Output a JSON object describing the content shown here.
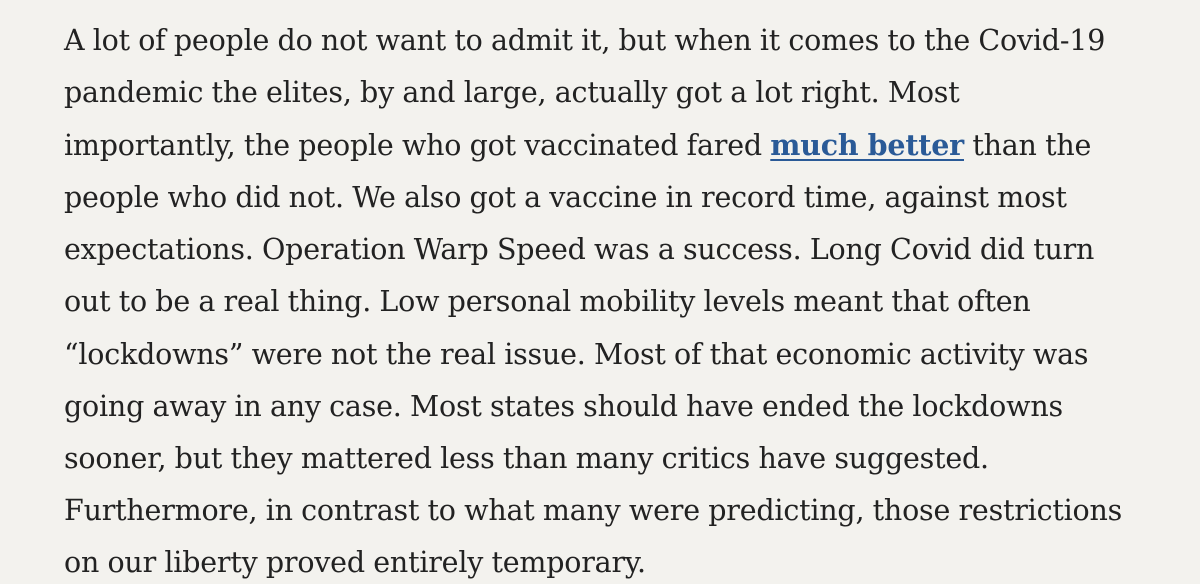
{
  "article": {
    "lines": [
      "A lot of people do not want to admit it, but when it comes to the Covid-19",
      "pandemic the elites, by and large, actually got a lot right. Most",
      "importantly, the people who got vaccinated fared",
      "people who did not. We also got a vaccine in record time, against most",
      "expectations. Operation Warp Speed was a success. Long Covid did turn",
      "out to be a real thing. Low personal mobility levels meant that often",
      "“lockdowns” were not the real issue. Most of that economic activity was",
      "going away in any case. Most states should have ended the lockdowns",
      "sooner, but they mattered less than many critics have suggested.",
      "Furthermore, in contrast to what many were predicting, those restrictions",
      "on our liberty proved entirely temporary."
    ],
    "link_text": "much better",
    "after_link": " than the",
    "link_color": "#2a5a97",
    "text_color": "#222222",
    "background_color": "#f3f2ee"
  }
}
